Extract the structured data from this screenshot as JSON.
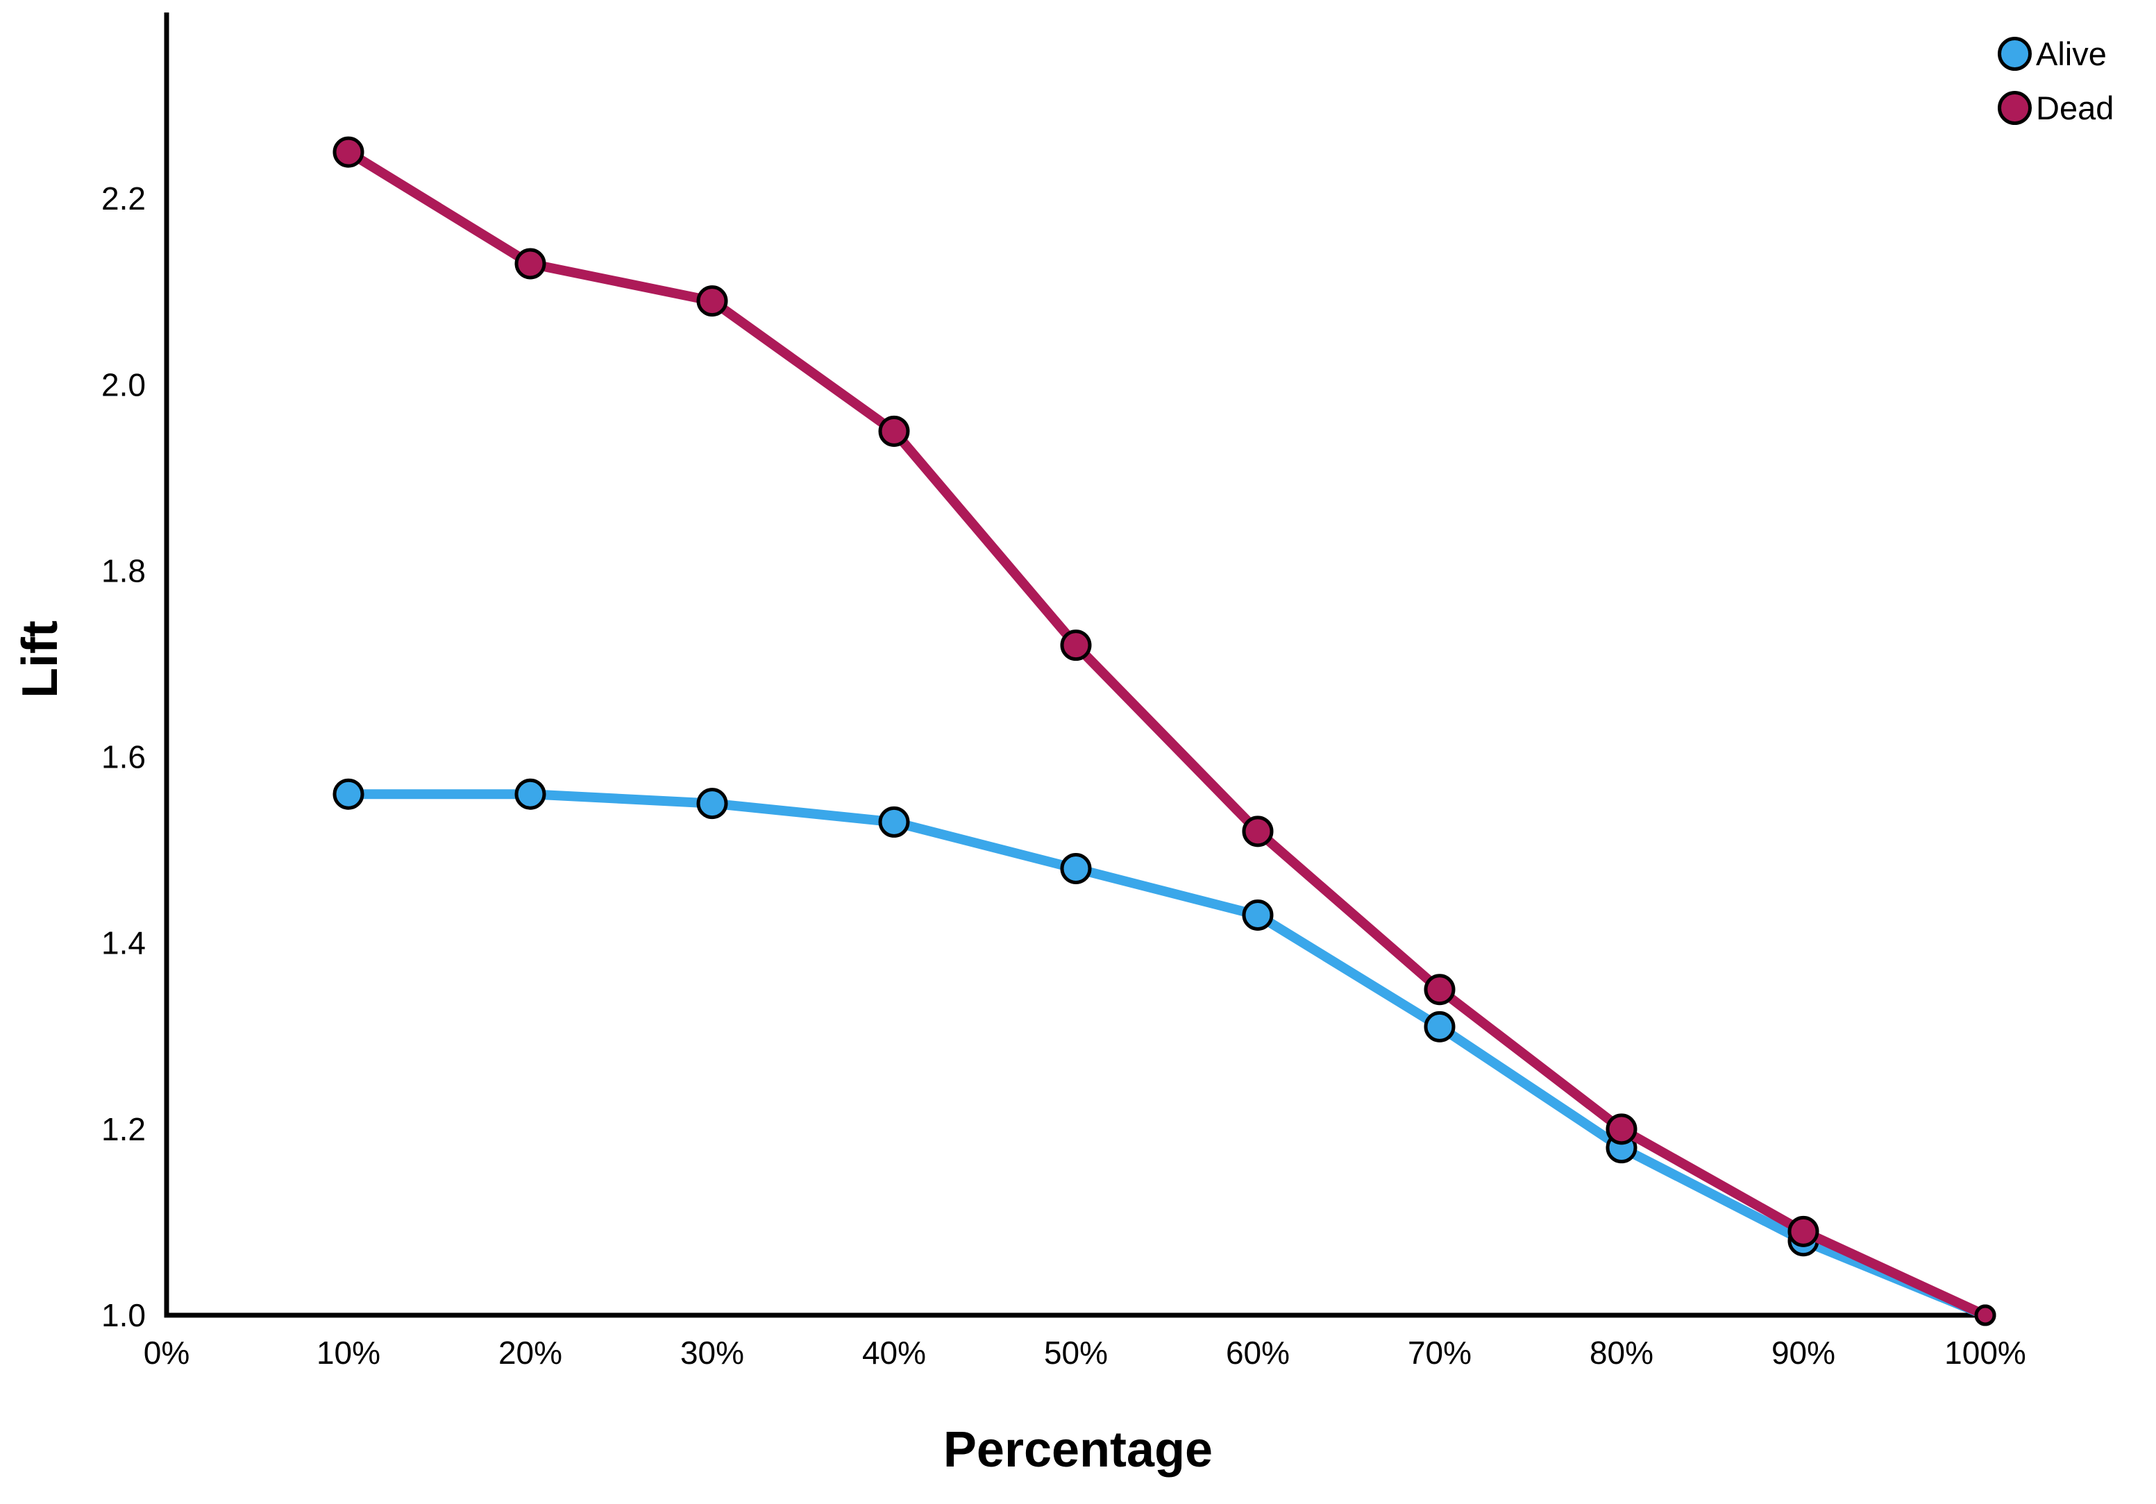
{
  "chart_data": {
    "type": "line",
    "title": "",
    "xlabel": "Percentage",
    "ylabel": "Lift",
    "x": [
      10,
      20,
      30,
      40,
      50,
      60,
      70,
      80,
      90,
      100
    ],
    "categories": [
      "10%",
      "20%",
      "30%",
      "40%",
      "50%",
      "60%",
      "70%",
      "80%",
      "90%",
      "100%"
    ],
    "series": [
      {
        "name": "Alive",
        "color": "#3AA7EA",
        "values": [
          1.56,
          1.56,
          1.55,
          1.53,
          1.48,
          1.43,
          1.31,
          1.18,
          1.08,
          1.0
        ]
      },
      {
        "name": "Dead",
        "color": "#AD1A58",
        "values": [
          2.25,
          2.13,
          2.09,
          1.95,
          1.72,
          1.52,
          1.35,
          1.2,
          1.09,
          1.0
        ]
      }
    ],
    "xlim": [
      0,
      100
    ],
    "ylim": [
      1.0,
      2.4
    ],
    "x_ticks": [
      0,
      10,
      20,
      30,
      40,
      50,
      60,
      70,
      80,
      90,
      100
    ],
    "x_tick_labels": [
      "0%",
      "10%",
      "20%",
      "30%",
      "40%",
      "50%",
      "60%",
      "70%",
      "80%",
      "90%",
      "100%"
    ],
    "y_ticks": [
      1.0,
      1.2,
      1.4,
      1.6,
      1.8,
      2.0,
      2.2
    ],
    "y_tick_labels": [
      "1.0",
      "1.2",
      "1.4",
      "1.6",
      "1.8",
      "2.0",
      "2.2"
    ],
    "grid": false,
    "legend_position": "top-right",
    "axis_color": "#000000",
    "tick_label_color": "#000000"
  },
  "legend": {
    "items": [
      {
        "label": "Alive",
        "color": "#3AA7EA"
      },
      {
        "label": "Dead",
        "color": "#AD1A58"
      }
    ]
  }
}
